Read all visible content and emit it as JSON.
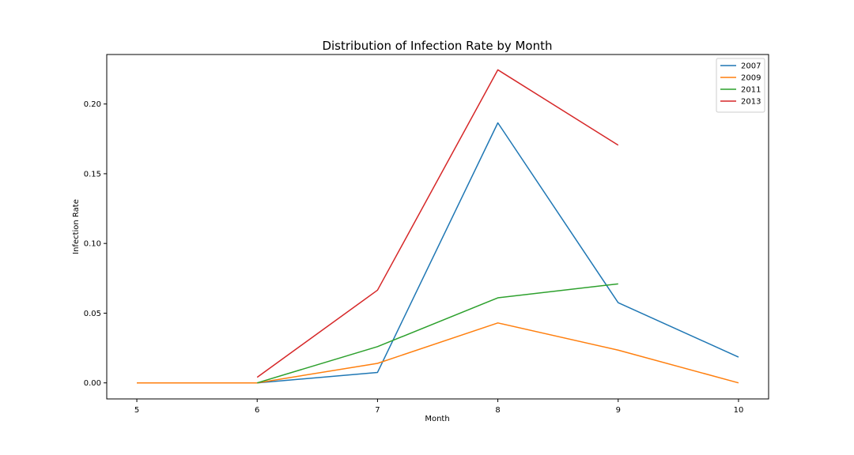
{
  "chart_data": {
    "type": "line",
    "title": "Distribution of Infection Rate by Month",
    "xlabel": "Month",
    "ylabel": "Infection Rate",
    "xlim": [
      4.75,
      10.25
    ],
    "ylim": [
      -0.0115,
      0.2355
    ],
    "x_ticks": [
      5,
      6,
      7,
      8,
      9,
      10
    ],
    "y_ticks": [
      0.0,
      0.05,
      0.1,
      0.15,
      0.2
    ],
    "y_tick_labels": [
      "0.00",
      "0.05",
      "0.10",
      "0.15",
      "0.20"
    ],
    "grid": false,
    "legend_position": "top-right",
    "series": [
      {
        "name": "2007",
        "color": "#1f77b4",
        "x": [
          5,
          6,
          7,
          8,
          9,
          10
        ],
        "y": [
          0.0,
          0.0,
          0.0075,
          0.1865,
          0.0575,
          0.0185
        ]
      },
      {
        "name": "2009",
        "color": "#ff7f0e",
        "x": [
          5,
          6,
          7,
          8,
          9,
          10
        ],
        "y": [
          0.0,
          0.0,
          0.014,
          0.043,
          0.0235,
          0.0
        ]
      },
      {
        "name": "2011",
        "color": "#2ca02c",
        "x": [
          6,
          7,
          8,
          9
        ],
        "y": [
          0.0,
          0.026,
          0.061,
          0.071
        ]
      },
      {
        "name": "2013",
        "color": "#d62728",
        "x": [
          6,
          7,
          8,
          9
        ],
        "y": [
          0.004,
          0.0665,
          0.2245,
          0.1705
        ]
      }
    ]
  }
}
